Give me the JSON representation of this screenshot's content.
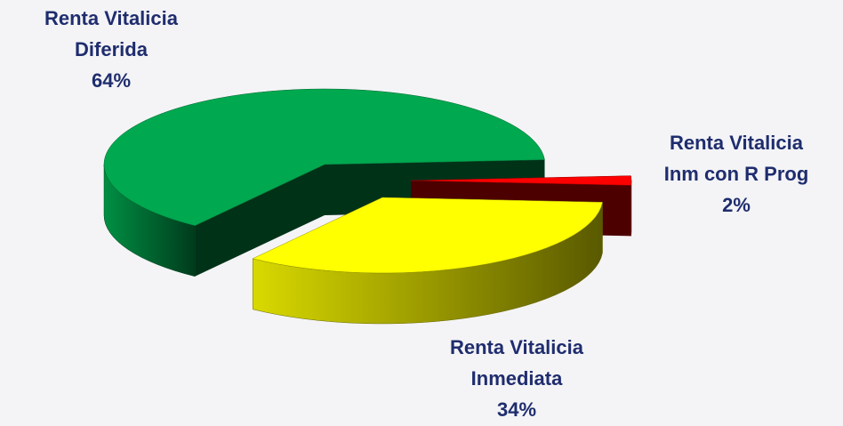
{
  "chart_data": {
    "type": "pie",
    "categories": [
      [
        "Renta Vitalicia",
        "Diferida"
      ],
      [
        "Renta Vitalicia",
        "Inm con R Prog"
      ],
      [
        "Renta Vitalicia",
        "Inmediata"
      ]
    ],
    "values": [
      64,
      2,
      34
    ],
    "value_labels": [
      "64%",
      "2%",
      "34%"
    ],
    "colors": [
      "#00a84f",
      "#ff0000",
      "#ffff00"
    ]
  }
}
